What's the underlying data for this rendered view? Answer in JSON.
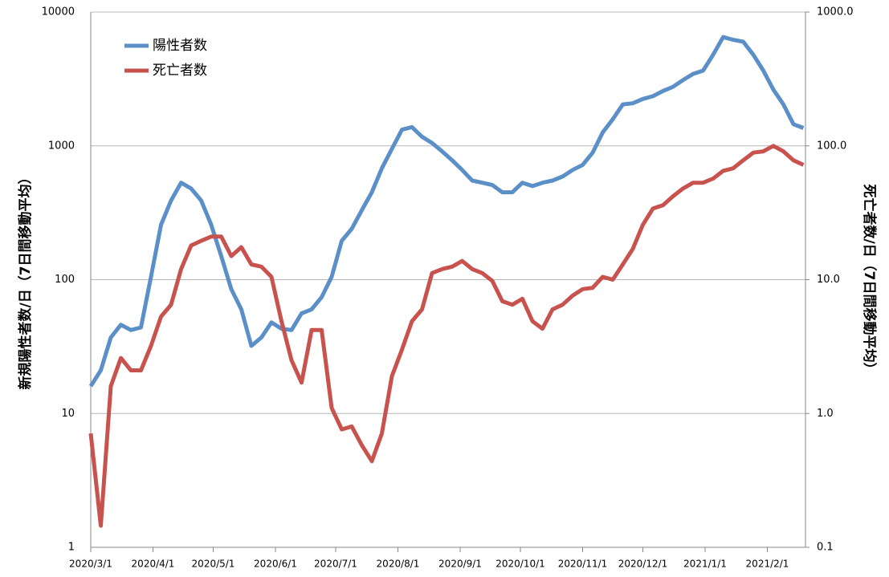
{
  "chart_data": {
    "type": "line",
    "y_label": "新規陽性者数/日（7日間移動平均）",
    "y2_label": "死亡者数/日（7日間移動平均）",
    "x": [
      "2020/3/1",
      "2020/3/6",
      "2020/3/11",
      "2020/3/16",
      "2020/3/21",
      "2020/3/26",
      "2020/3/31",
      "2020/4/5",
      "2020/4/10",
      "2020/4/15",
      "2020/4/20",
      "2020/4/25",
      "2020/4/30",
      "2020/5/5",
      "2020/5/10",
      "2020/5/15",
      "2020/5/20",
      "2020/5/25",
      "2020/5/30",
      "2020/6/4",
      "2020/6/9",
      "2020/6/14",
      "2020/6/19",
      "2020/6/24",
      "2020/6/29",
      "2020/7/4",
      "2020/7/9",
      "2020/7/14",
      "2020/7/19",
      "2020/7/24",
      "2020/7/29",
      "2020/8/3",
      "2020/8/8",
      "2020/8/13",
      "2020/8/18",
      "2020/8/23",
      "2020/8/28",
      "2020/9/2",
      "2020/9/7",
      "2020/9/12",
      "2020/9/17",
      "2020/9/22",
      "2020/9/27",
      "2020/10/2",
      "2020/10/7",
      "2020/10/12",
      "2020/10/17",
      "2020/10/22",
      "2020/10/27",
      "2020/11/1",
      "2020/11/6",
      "2020/11/11",
      "2020/11/16",
      "2020/11/21",
      "2020/11/26",
      "2020/12/1",
      "2020/12/6",
      "2020/12/11",
      "2020/12/16",
      "2020/12/21",
      "2020/12/26",
      "2020/12/31",
      "2021/1/5",
      "2021/1/10",
      "2021/1/15",
      "2021/1/20",
      "2021/1/25",
      "2021/1/30",
      "2021/2/4",
      "2021/2/9",
      "2021/2/14",
      "2021/2/19"
    ],
    "series": [
      {
        "name": "陽性者数",
        "color": "#5b8fc7",
        "values": [
          16,
          21,
          37,
          46,
          42,
          44,
          105,
          257,
          390,
          530,
          480,
          390,
          257,
          150,
          85,
          60,
          32,
          37,
          48,
          43,
          42,
          56,
          60,
          74,
          105,
          195,
          240,
          330,
          450,
          680,
          950,
          1320,
          1380,
          1170,
          1050,
          910,
          780,
          660,
          550,
          530,
          510,
          450,
          450,
          530,
          500,
          530,
          550,
          590,
          660,
          720,
          890,
          1260,
          1580,
          2040,
          2080,
          2240,
          2350,
          2570,
          2760,
          3100,
          3450,
          3650,
          4800,
          6500,
          6200,
          6000,
          4800,
          3650,
          2630,
          2040,
          1450,
          1360
        ]
      },
      {
        "name": "死亡者数",
        "color": "#c8524e",
        "axis": "y2",
        "values": [
          0.71,
          0.145,
          1.6,
          2.6,
          2.1,
          2.1,
          3.2,
          5.3,
          6.5,
          12,
          18,
          19.5,
          21,
          21,
          15,
          17.5,
          13,
          12.5,
          10.5,
          4.9,
          2.5,
          1.7,
          4.2,
          4.2,
          1.1,
          0.76,
          0.8,
          0.58,
          0.44,
          0.71,
          1.9,
          3.0,
          4.9,
          6.0,
          11.2,
          12,
          12.5,
          13.8,
          12,
          11.2,
          9.8,
          6.9,
          6.5,
          7.2,
          4.9,
          4.3,
          6.0,
          6.5,
          7.6,
          8.5,
          8.7,
          10.5,
          10,
          13,
          17,
          25.7,
          34,
          36,
          42,
          48,
          53,
          53,
          57,
          65,
          68,
          78,
          89,
          91,
          100,
          91,
          78,
          72
        ]
      }
    ],
    "xlim": [
      "2020/3/1",
      "2021/2/20"
    ],
    "xticks": [
      "2020/3/1",
      "2020/4/1",
      "2020/5/1",
      "2020/6/1",
      "2020/7/1",
      "2020/8/1",
      "2020/9/1",
      "2020/10/1",
      "2020/11/1",
      "2020/12/1",
      "2021/1/1",
      "2021/2/1"
    ],
    "ylim": [
      1,
      10000
    ],
    "yticks": [
      1,
      10,
      100,
      1000,
      10000
    ],
    "y2lim": [
      0.1,
      1000
    ],
    "y2ticks": [
      0.1,
      {
        "value": 1,
        "label": "1.0"
      },
      {
        "value": 10,
        "label": "10.0"
      },
      {
        "value": 100,
        "label": "100.0"
      },
      {
        "value": 1000,
        "label": "1000.0"
      }
    ],
    "log_scale": true,
    "grid": true,
    "legend": "upper left"
  }
}
